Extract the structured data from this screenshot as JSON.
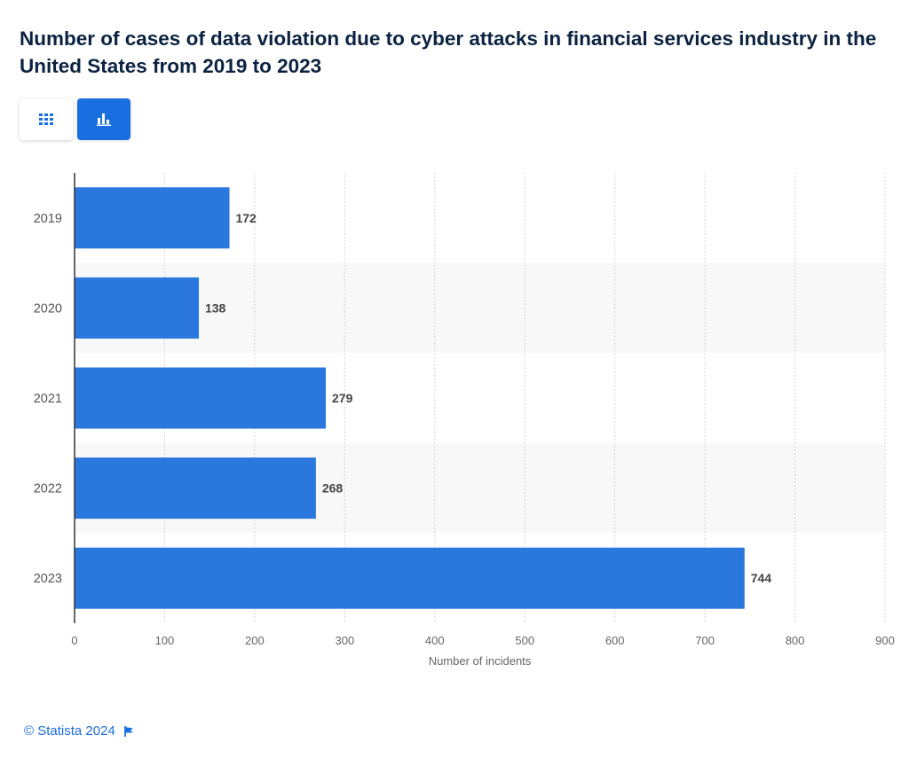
{
  "title": "Number of cases of data violation due to cyber attacks in financial services industry in the United States from 2019 to 2023",
  "toggles": {
    "table_icon": "table-grid-icon",
    "chart_icon": "bar-chart-icon"
  },
  "footer": {
    "copyright": "© Statista 2024",
    "flag_icon": "flag-icon"
  },
  "colors": {
    "bar": "#2a77dd",
    "accent": "#1a6fe0",
    "title": "#0b2240",
    "band": "#f8f8f8"
  },
  "chart_data": {
    "type": "bar",
    "orientation": "horizontal",
    "categories": [
      "2019",
      "2020",
      "2021",
      "2022",
      "2023"
    ],
    "values": [
      172,
      138,
      279,
      268,
      744
    ],
    "value_labels": [
      "172",
      "138",
      "279",
      "268",
      "744"
    ],
    "xlabel": "Number of incidents",
    "ylabel": "",
    "xlim": [
      0,
      900
    ],
    "xticks": [
      0,
      100,
      200,
      300,
      400,
      500,
      600,
      700,
      800,
      900
    ],
    "grid": "vertical dotted",
    "alternating_row_bands": true
  }
}
